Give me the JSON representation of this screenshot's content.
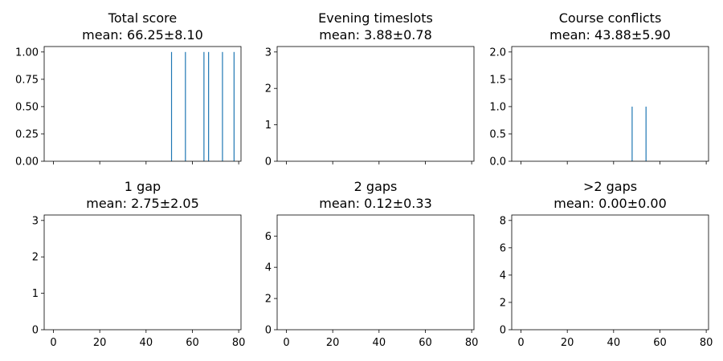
{
  "chart_data": [
    {
      "type": "bar",
      "title": "Total score",
      "subtitle": "mean: 66.25±8.10",
      "xlim": [
        -4,
        81
      ],
      "ylim": [
        0,
        1.05
      ],
      "x_ticks": [
        0,
        20,
        40,
        60,
        80
      ],
      "x_tick_labels_shown": false,
      "y_ticks": [
        "0.00",
        "0.25",
        "0.50",
        "0.75",
        "1.00"
      ],
      "bar_color": "#1f77b4",
      "x": [
        51,
        57,
        65,
        67,
        73,
        78
      ],
      "values": [
        1,
        1,
        1,
        1,
        1,
        1
      ]
    },
    {
      "type": "bar",
      "title": "Evening timeslots",
      "subtitle": "mean: 3.88±0.78",
      "xlim": [
        -4,
        81
      ],
      "ylim": [
        0,
        3.15
      ],
      "x_ticks": [
        0,
        20,
        40,
        60,
        80
      ],
      "x_tick_labels_shown": false,
      "y_ticks": [
        "0",
        "1",
        "2",
        "3"
      ],
      "bar_color": "#1f77b4",
      "x": [],
      "values": []
    },
    {
      "type": "bar",
      "title": "Course conflicts",
      "subtitle": "mean: 43.88±5.90",
      "xlim": [
        -4,
        81
      ],
      "ylim": [
        0,
        2.1
      ],
      "x_ticks": [
        0,
        20,
        40,
        60,
        80
      ],
      "x_tick_labels_shown": false,
      "y_ticks": [
        "0.0",
        "0.5",
        "1.0",
        "1.5",
        "2.0"
      ],
      "bar_color": "#1f77b4",
      "x": [
        48,
        54
      ],
      "values": [
        1,
        1
      ]
    },
    {
      "type": "bar",
      "title": "1 gap",
      "subtitle": "mean: 2.75±2.05",
      "xlim": [
        -4,
        81
      ],
      "ylim": [
        0,
        3.15
      ],
      "x_ticks": [
        0,
        20,
        40,
        60,
        80
      ],
      "x_tick_labels_shown": true,
      "x_tick_labels": [
        "0",
        "20",
        "40",
        "60",
        "80"
      ],
      "y_ticks": [
        "0",
        "1",
        "2",
        "3"
      ],
      "bar_color": "#1f77b4",
      "x": [],
      "values": []
    },
    {
      "type": "bar",
      "title": "2 gaps",
      "subtitle": "mean: 0.12±0.33",
      "xlim": [
        -4,
        81
      ],
      "ylim": [
        0,
        7.35
      ],
      "x_ticks": [
        0,
        20,
        40,
        60,
        80
      ],
      "x_tick_labels_shown": true,
      "x_tick_labels": [
        "0",
        "20",
        "40",
        "60",
        "80"
      ],
      "y_ticks": [
        "0",
        "2",
        "4",
        "6"
      ],
      "bar_color": "#1f77b4",
      "x": [],
      "values": []
    },
    {
      "type": "bar",
      "title": ">2 gaps",
      "subtitle": "mean: 0.00±0.00",
      "xlim": [
        -4,
        81
      ],
      "ylim": [
        0,
        8.4
      ],
      "x_ticks": [
        0,
        20,
        40,
        60,
        80
      ],
      "x_tick_labels_shown": true,
      "x_tick_labels": [
        "0",
        "20",
        "40",
        "60",
        "80"
      ],
      "y_ticks": [
        "0",
        "2",
        "4",
        "6",
        "8"
      ],
      "bar_color": "#1f77b4",
      "x": [],
      "values": []
    }
  ]
}
